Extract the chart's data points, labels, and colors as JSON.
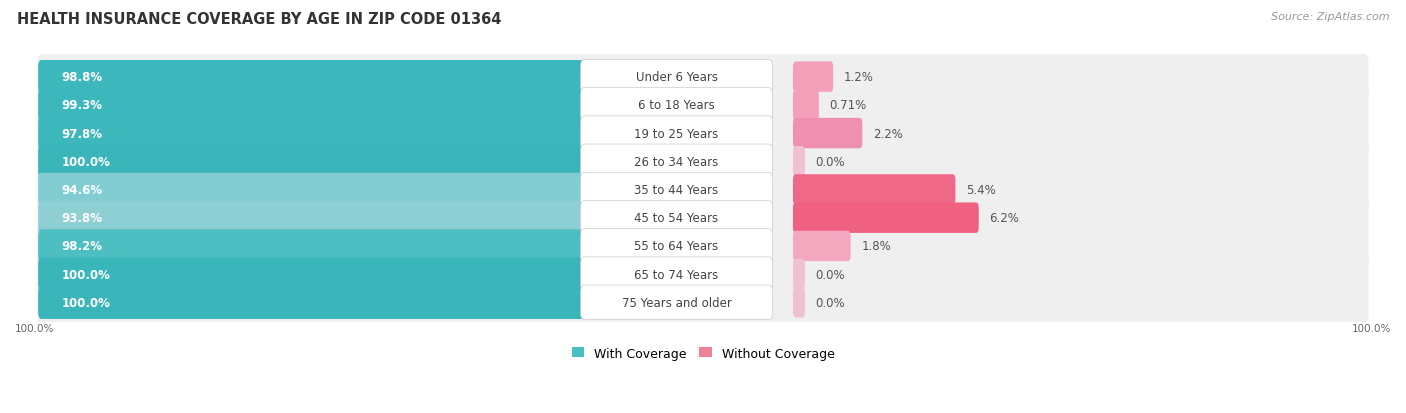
{
  "title": "HEALTH INSURANCE COVERAGE BY AGE IN ZIP CODE 01364",
  "source": "Source: ZipAtlas.com",
  "categories": [
    "Under 6 Years",
    "6 to 18 Years",
    "19 to 25 Years",
    "26 to 34 Years",
    "35 to 44 Years",
    "45 to 54 Years",
    "55 to 64 Years",
    "65 to 74 Years",
    "75 Years and older"
  ],
  "with_coverage": [
    98.8,
    99.3,
    97.8,
    100.0,
    94.6,
    93.8,
    98.2,
    100.0,
    100.0
  ],
  "without_coverage": [
    1.2,
    0.71,
    2.2,
    0.0,
    5.4,
    6.2,
    1.8,
    0.0,
    0.0
  ],
  "with_coverage_labels": [
    "98.8%",
    "99.3%",
    "97.8%",
    "100.0%",
    "94.6%",
    "93.8%",
    "98.2%",
    "100.0%",
    "100.0%"
  ],
  "without_coverage_labels": [
    "1.2%",
    "0.71%",
    "2.2%",
    "0.0%",
    "5.4%",
    "6.2%",
    "1.8%",
    "0.0%",
    "0.0%"
  ],
  "with_shades": [
    "#3cb8bc",
    "#3cb8bc",
    "#3cb8bc",
    "#3ab5ba",
    "#82cdd1",
    "#8ecfd3",
    "#4dbec2",
    "#3ab5ba",
    "#3ab5ba"
  ],
  "without_shades": [
    "#f4a0bb",
    "#f4a0bb",
    "#f090b0",
    "#f0c0d5",
    "#f06888",
    "#f06080",
    "#f4a8c0",
    "#f0c0d5",
    "#f0c0d5"
  ],
  "row_bg": "#efefef",
  "label_bg": "#ffffff",
  "title_fontsize": 10.5,
  "bar_label_fontsize": 8.5,
  "cat_label_fontsize": 8.5,
  "pct_label_fontsize": 8.5,
  "legend_fontsize": 9,
  "source_fontsize": 8,
  "color_with_legend": "#4bbfbf",
  "color_without_legend": "#f08098"
}
